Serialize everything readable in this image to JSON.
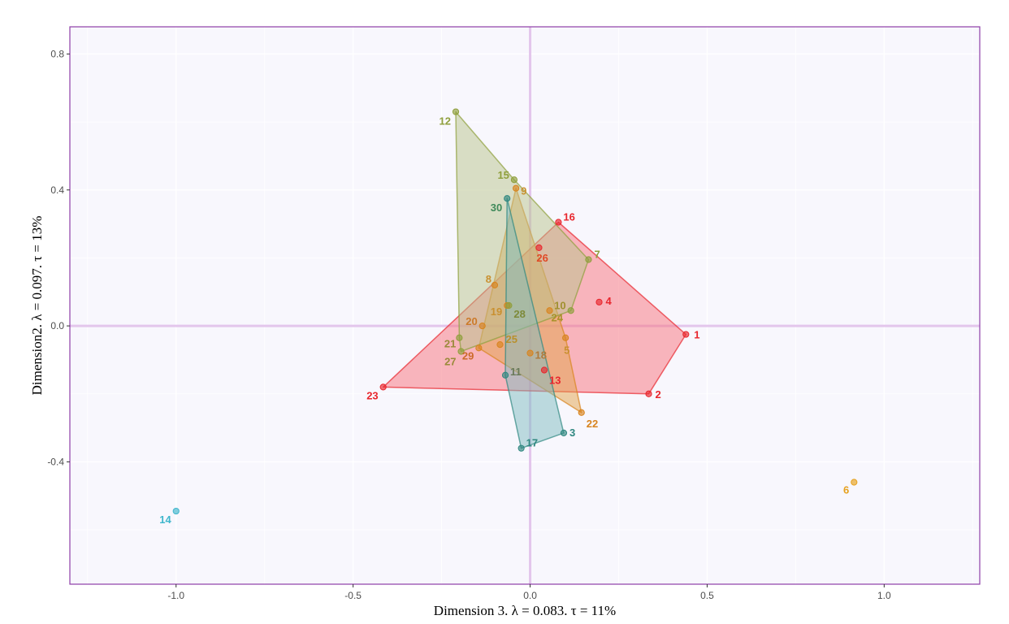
{
  "chart_data": {
    "type": "scatter",
    "title": "",
    "xlabel": "Dimension 3.   λ = 0.083.  τ = 11%",
    "ylabel": "Dimension2.   λ = 0.097.  τ = 13%",
    "xlim": [
      -1.3,
      1.27
    ],
    "ylim": [
      -0.76,
      0.88
    ],
    "x_ticks": [
      -1.0,
      -0.5,
      0.0,
      0.5,
      1.0
    ],
    "x_tick_labels": [
      "-1.0",
      "-0.5",
      "0.0",
      "0.5",
      "1.0"
    ],
    "y_ticks": [
      0.8,
      0.4,
      0.0,
      -0.4
    ],
    "y_tick_labels": [
      "0.8",
      "0.4",
      "0.0",
      "-0.4"
    ],
    "grid": true,
    "reference_lines": {
      "x": 0,
      "y": 0,
      "color": "#e3c6ec"
    },
    "panel_background": "#f8f7fd",
    "panel_border_color": "#8e3ea8",
    "groups": [
      {
        "color": "#e8262d",
        "fill": "#f8717b",
        "points": [
          {
            "label": "1",
            "x": 0.44,
            "y": -0.025
          },
          {
            "label": "2",
            "x": 0.335,
            "y": -0.2
          },
          {
            "label": "4",
            "x": 0.195,
            "y": 0.07
          },
          {
            "label": "13",
            "x": 0.04,
            "y": -0.13
          },
          {
            "label": "16",
            "x": 0.08,
            "y": 0.305
          },
          {
            "label": "23",
            "x": -0.415,
            "y": -0.18
          },
          {
            "label": "26",
            "x": 0.025,
            "y": 0.23
          }
        ],
        "hull": [
          "16",
          "1",
          "2",
          "23"
        ]
      },
      {
        "color": "#d8841e",
        "fill": "#e2a44c",
        "points": [
          {
            "label": "5",
            "x": 0.1,
            "y": -0.035
          },
          {
            "label": "8",
            "x": -0.1,
            "y": 0.12
          },
          {
            "label": "9",
            "x": -0.04,
            "y": 0.405
          },
          {
            "label": "18",
            "x": 0.0,
            "y": -0.08
          },
          {
            "label": "19",
            "x": -0.065,
            "y": 0.06
          },
          {
            "label": "20",
            "x": -0.135,
            "y": 0.0
          },
          {
            "label": "22",
            "x": 0.145,
            "y": -0.255
          },
          {
            "label": "24",
            "x": 0.055,
            "y": 0.045
          },
          {
            "label": "25",
            "x": -0.085,
            "y": -0.055
          },
          {
            "label": "29",
            "x": -0.145,
            "y": -0.065
          }
        ],
        "hull": [
          "9",
          "5",
          "22",
          "29"
        ]
      },
      {
        "color": "#8f9f3c",
        "fill": "#b8c48c",
        "points": [
          {
            "label": "7",
            "x": 0.165,
            "y": 0.195
          },
          {
            "label": "10",
            "x": 0.115,
            "y": 0.045
          },
          {
            "label": "12",
            "x": -0.21,
            "y": 0.63
          },
          {
            "label": "15",
            "x": -0.045,
            "y": 0.43
          },
          {
            "label": "21",
            "x": -0.2,
            "y": -0.035
          },
          {
            "label": "27",
            "x": -0.195,
            "y": -0.075
          },
          {
            "label": "28",
            "x": -0.06,
            "y": 0.06
          }
        ],
        "hull": [
          "12",
          "15",
          "7",
          "10",
          "27",
          "21"
        ]
      },
      {
        "color": "#2f8780",
        "fill": "#7dbcbf",
        "points": [
          {
            "label": "3",
            "x": 0.095,
            "y": -0.315
          },
          {
            "label": "11",
            "x": -0.07,
            "y": -0.145
          },
          {
            "label": "17",
            "x": -0.025,
            "y": -0.36
          },
          {
            "label": "30",
            "x": -0.065,
            "y": 0.375
          }
        ],
        "hull": [
          "30",
          "3",
          "17",
          "11"
        ]
      },
      {
        "color": "#e6a11d",
        "fill": "#f0bb55",
        "points": [
          {
            "label": "6",
            "x": 0.915,
            "y": -0.46
          }
        ],
        "hull": []
      },
      {
        "color": "#3fb6cc",
        "fill": "#7fcfdc",
        "points": [
          {
            "label": "14",
            "x": -1.0,
            "y": -0.545
          }
        ],
        "hull": []
      }
    ],
    "label_colors": {
      "1": "#e8262d",
      "2": "#e8262d",
      "4": "#e8262d",
      "13": "#e8262d",
      "16": "#e8262d",
      "23": "#e8262d",
      "26": "#e04a26",
      "5": "#c99030",
      "8": "#c99030",
      "9": "#c99030",
      "18": "#b07a3a",
      "19": "#c99030",
      "20": "#cc7a2a",
      "22": "#d8841e",
      "24": "#a8922a",
      "25": "#b8902c",
      "29": "#cc6a2a",
      "7": "#8f9f3c",
      "10": "#a0902e",
      "12": "#8f9f3c",
      "15": "#8f9f3c",
      "21": "#9a8a3a",
      "27": "#9a8a3a",
      "28": "#7d8a3a",
      "3": "#2f8780",
      "11": "#6a7a5a",
      "17": "#2f8780",
      "30": "#3f8a5a",
      "6": "#e6a11d",
      "14": "#3fb6cc"
    }
  }
}
